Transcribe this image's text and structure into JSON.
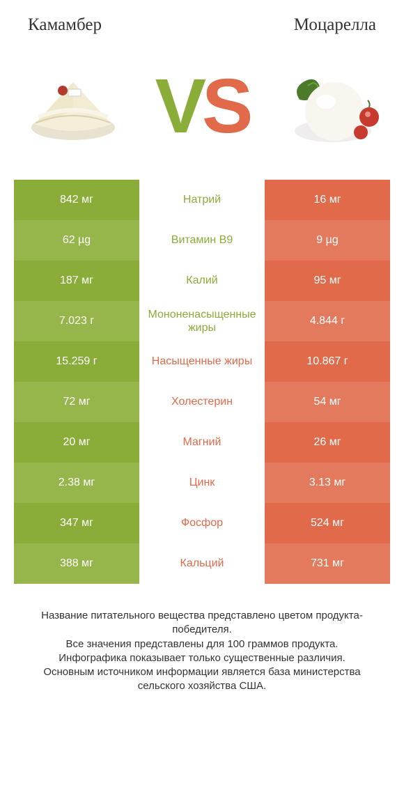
{
  "colors": {
    "green": "#8aad3a",
    "green_alt": "#96b54a",
    "orange": "#e06a4a",
    "orange_alt": "#e47a5d",
    "text": "#333333",
    "white": "#ffffff"
  },
  "typography": {
    "title_fontsize": 25,
    "cell_fontsize": 16,
    "footer_fontsize": 15,
    "vs_fontsize": 110
  },
  "header": {
    "left": "Камамбер",
    "right": "Моцарелла"
  },
  "vs": {
    "v": "V",
    "s": "S"
  },
  "rows": [
    {
      "left": "842 мг",
      "mid": "Натрий",
      "right": "16 мг",
      "winner": "left"
    },
    {
      "left": "62 µg",
      "mid": "Витамин B9",
      "right": "9 µg",
      "winner": "left"
    },
    {
      "left": "187 мг",
      "mid": "Калий",
      "right": "95 мг",
      "winner": "left"
    },
    {
      "left": "7.023 г",
      "mid": "Мононенасыщенные жиры",
      "right": "4.844 г",
      "winner": "left"
    },
    {
      "left": "15.259 г",
      "mid": "Насыщенные жиры",
      "right": "10.867 г",
      "winner": "right"
    },
    {
      "left": "72 мг",
      "mid": "Холестерин",
      "right": "54 мг",
      "winner": "right"
    },
    {
      "left": "20 мг",
      "mid": "Магний",
      "right": "26 мг",
      "winner": "right"
    },
    {
      "left": "2.38 мг",
      "mid": "Цинк",
      "right": "3.13 мг",
      "winner": "right"
    },
    {
      "left": "347 мг",
      "mid": "Фосфор",
      "right": "524 мг",
      "winner": "right"
    },
    {
      "left": "388 мг",
      "mid": "Кальций",
      "right": "731 мг",
      "winner": "right"
    }
  ],
  "footer": {
    "line1": "Название питательного вещества представлено цветом продукта-победителя.",
    "line2": "Все значения представлены для 100 граммов продукта.",
    "line3": "Инфографика показывает только существенные различия.",
    "line4": "Основным источником информации является база министерства сельского хозяйства США."
  }
}
